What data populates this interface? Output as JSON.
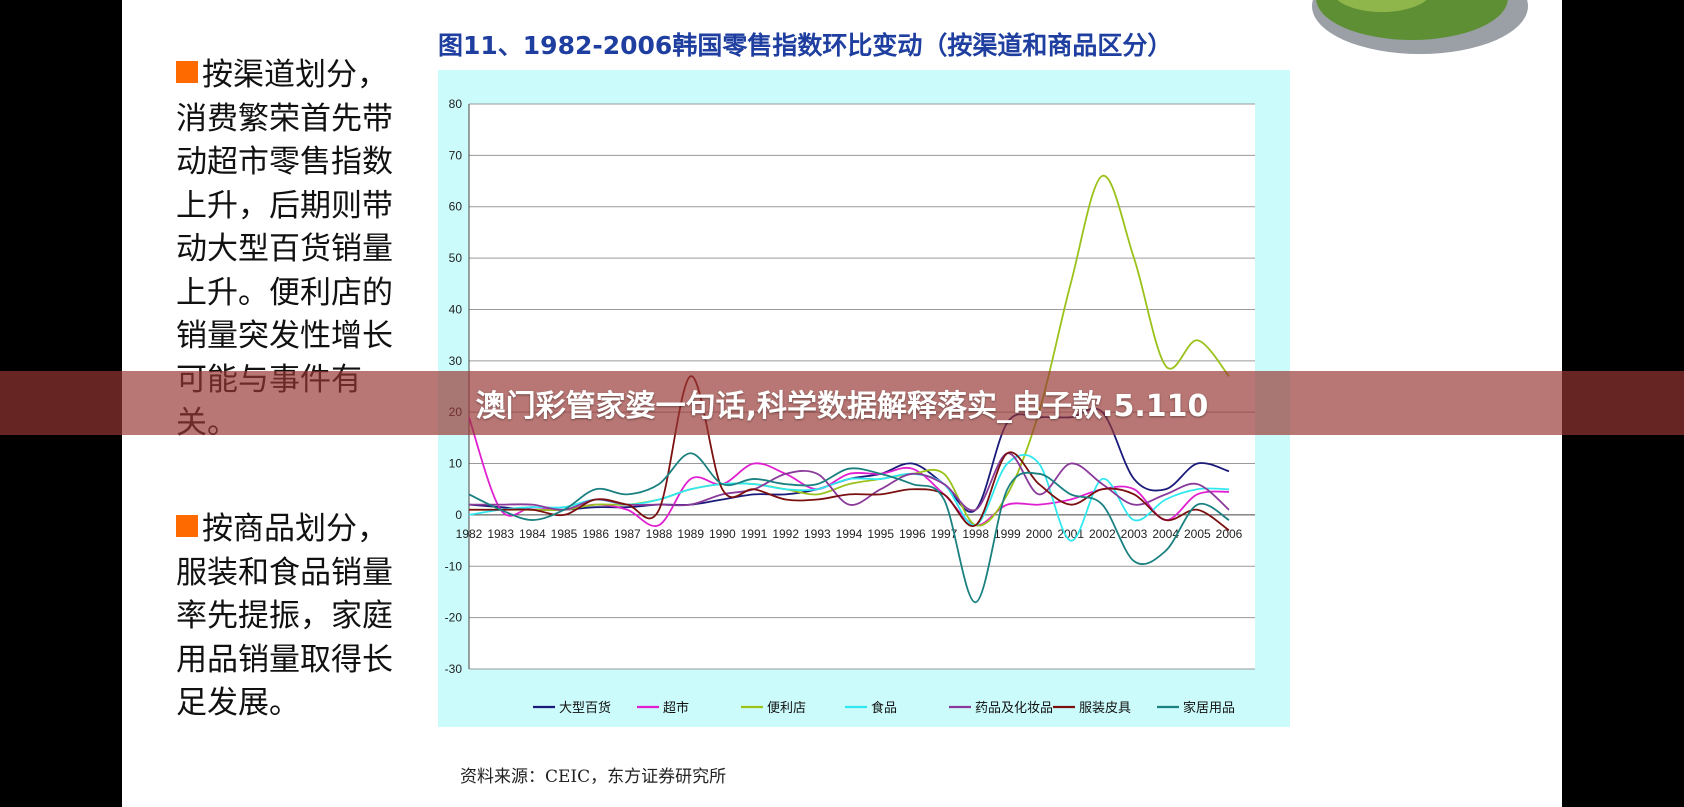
{
  "banner": {
    "text": "澳门彩管家婆一句话,科学数据解释落实_电子款.5.110"
  },
  "side_text": {
    "channel": "按渠道划分，消费繁荣首先带动超市零售指数上升，后期则带动大型百货销量上升。便利店的销量突发性增长可能与事件有关。",
    "product": "按商品划分，服装和食品销量率先提振，家庭用品销量取得长足发展。"
  },
  "source": "资料来源：CEIC，东方证券研究所",
  "colors": {
    "bullet": "#ff6a00",
    "title": "#1f3fa0",
    "panel": "#ccfbfb"
  },
  "chart_data": {
    "type": "line",
    "title": "图11、1982-2006韩国零售指数环比变动（按渠道和商品区分）",
    "xlabel": "",
    "ylabel": "",
    "x": [
      "1982",
      "1983",
      "1984",
      "1985",
      "1986",
      "1987",
      "1988",
      "1989",
      "1990",
      "1991",
      "1992",
      "1993",
      "1994",
      "1995",
      "1996",
      "1997",
      "1998",
      "1999",
      "2000",
      "2001",
      "2002",
      "2003",
      "2004",
      "2005",
      "2006"
    ],
    "ylim": [
      -30,
      80
    ],
    "yticks": [
      -30,
      -20,
      -10,
      0,
      10,
      20,
      30,
      40,
      50,
      60,
      70,
      80
    ],
    "grid": true,
    "legend_position": "bottom",
    "series": [
      {
        "name": "大型百货",
        "color": "#1a1a7a",
        "values": [
          2,
          1.5,
          1,
          1,
          1.5,
          1.5,
          2,
          2,
          3,
          4,
          4,
          5,
          7,
          8,
          10,
          6,
          1,
          18,
          19,
          19,
          20,
          7,
          5,
          10,
          8.5
        ]
      },
      {
        "name": "超市",
        "color": "#e020d0",
        "values": [
          19,
          1,
          1.5,
          1,
          2,
          1,
          -2,
          7,
          6,
          10,
          8,
          5,
          8,
          8,
          9,
          4,
          -2,
          2,
          2,
          3,
          5,
          5,
          -1,
          4,
          4.5
        ]
      },
      {
        "name": "便利店",
        "color": "#9ac21a",
        "values": [
          1,
          1,
          1,
          1,
          2,
          2,
          3,
          5,
          6,
          6,
          5,
          4,
          6,
          7,
          8,
          8,
          -2,
          4,
          20,
          45,
          66,
          50,
          29,
          34,
          27
        ]
      },
      {
        "name": "食品",
        "color": "#30e8f0",
        "values": [
          0,
          1,
          1.5,
          1.5,
          3,
          2,
          3,
          5,
          6,
          6,
          5,
          5,
          7,
          7,
          8,
          6,
          -2,
          10,
          10,
          -5,
          7,
          -1,
          3,
          5,
          5
        ]
      },
      {
        "name": "药品及化妆品",
        "color": "#8a3a9a",
        "values": [
          2,
          2,
          2,
          1,
          3,
          2,
          2,
          2,
          4,
          5,
          8,
          8,
          2,
          5,
          8,
          6,
          1,
          12,
          4,
          10,
          6,
          2,
          4,
          6,
          1
        ]
      },
      {
        "name": "服装皮具",
        "color": "#7a1010",
        "values": [
          1,
          1,
          1,
          0,
          3,
          2,
          1,
          27,
          5,
          5,
          3,
          3,
          4,
          4,
          5,
          4,
          -2,
          12,
          6,
          2,
          5,
          4,
          -1,
          1,
          -3
        ]
      },
      {
        "name": "家居用品",
        "color": "#1a8080",
        "values": [
          4,
          1,
          -1,
          1,
          5,
          4,
          6,
          12,
          6,
          7,
          6,
          6,
          9,
          8,
          6,
          3,
          -17,
          5,
          8,
          4,
          2,
          -9,
          -7,
          2,
          -1
        ]
      }
    ]
  }
}
